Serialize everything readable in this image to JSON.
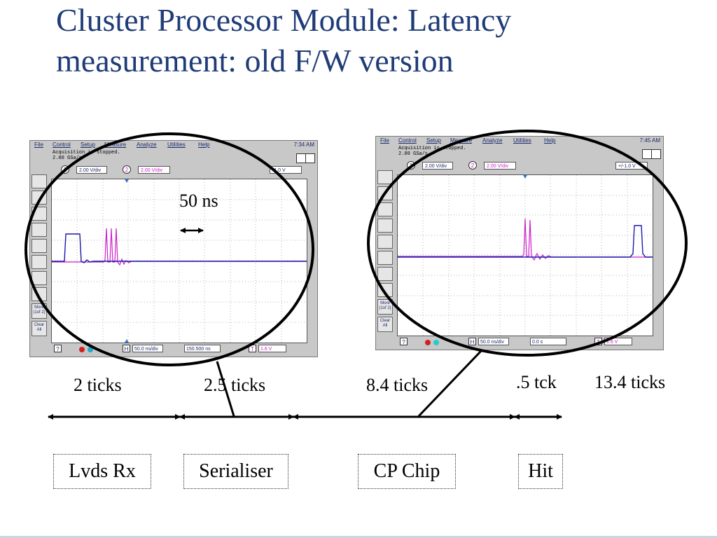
{
  "slide": {
    "title": "Cluster Processor Module: Latency measurement: old F/W version",
    "annotation": "50 ns",
    "tick_labels": [
      "2 ticks",
      "2.5 ticks",
      "8.4 ticks",
      ".5 tck",
      "13.4 ticks"
    ],
    "blocks": [
      "Lvds Rx",
      "Serialiser",
      "CP Chip",
      "Hit"
    ]
  },
  "scope_left": {
    "menu": [
      "File",
      "Control",
      "Setup",
      "Measure",
      "Analyze",
      "Utilities",
      "Help"
    ],
    "time": "7:34 AM",
    "acq_line1": "Acquisition is stopped.",
    "acq_line2": "2.00 GSa/s",
    "ch1_scale": "2.00 V/div",
    "ch2_scale": "2.00 V/div",
    "trigger_level": "-1.0 V",
    "more_label": "More (1of 2)",
    "clear_label": "Clear All",
    "h_scale": "50.0 ns/div",
    "h_delay": "150.500 ns",
    "trig_value": "1.6 V"
  },
  "scope_right": {
    "menu": [
      "File",
      "Control",
      "Setup",
      "Measure",
      "Analyze",
      "Utilities",
      "Help"
    ],
    "time": "7:45 AM",
    "acq_line1": "Acquisition is stopped.",
    "acq_line2": "2.00 GSa/s",
    "ch1_scale": "2.00 V/div",
    "ch2_scale": "2.00 V/div",
    "trigger_level": "+/-1.0 V",
    "more_label": "More (1of 2)",
    "clear_label": "Clear All",
    "h_scale": "50.0 ns/div",
    "h_delay": "0.0 s",
    "trig_value": "1.6 V"
  },
  "colors": {
    "title": "#1f3c78",
    "ch1_trace": "#1a1aa8",
    "ch2_trace": "#cc22cc",
    "scope_bg": "#c8c8c8"
  }
}
